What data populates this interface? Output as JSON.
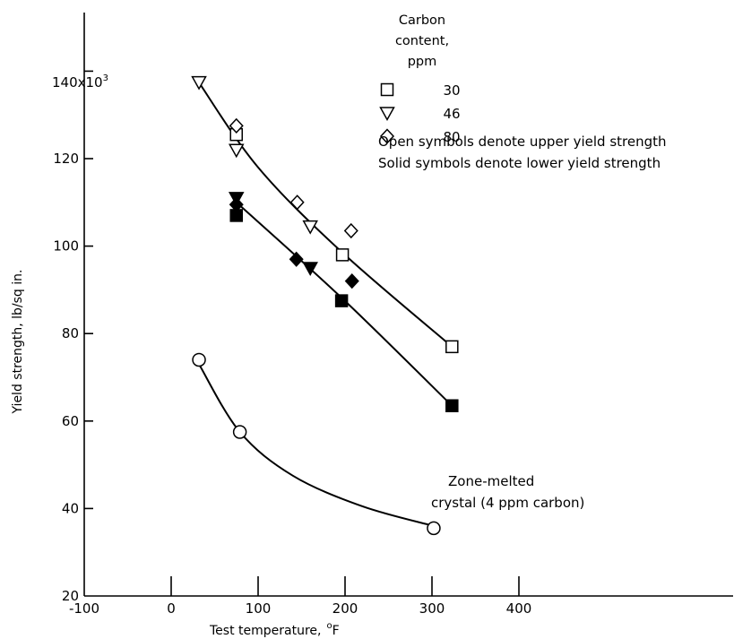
{
  "chart_data": {
    "type": "scatter",
    "title": "",
    "xlabel": "Test temperature,",
    "xlabel_unit": "F",
    "xlabel_unit_sup": "o",
    "ylabel": "Yield strength, lb/sq in.",
    "xlim": [
      -100,
      400
    ],
    "ylim": [
      20,
      140
    ],
    "x_ticks": [
      -100,
      0,
      100,
      200,
      300,
      400
    ],
    "y_ticks": [
      20,
      40,
      60,
      80,
      100,
      120
    ],
    "y_top_label": "140x10",
    "y_top_label_sup": "3",
    "y_top_value": 140,
    "legend": {
      "title": [
        "Carbon",
        "content,",
        "ppm"
      ],
      "entries": [
        {
          "symbol": "square",
          "label": "30"
        },
        {
          "symbol": "triangle",
          "label": "46"
        },
        {
          "symbol": "diamond",
          "label": "80"
        }
      ],
      "placement": "top-right",
      "notes": [
        "Open symbols denote upper yield strength",
        "Solid symbols denote lower yield strength"
      ]
    },
    "series": [
      {
        "symbol": "square",
        "fill": "open",
        "points": [
          {
            "x": 75,
            "y": 125.5
          },
          {
            "x": 197,
            "y": 98
          },
          {
            "x": 323,
            "y": 77
          }
        ]
      },
      {
        "symbol": "triangle",
        "fill": "open",
        "points": [
          {
            "x": 32,
            "y": 137.5
          },
          {
            "x": 75,
            "y": 122
          },
          {
            "x": 160,
            "y": 104.5
          }
        ]
      },
      {
        "symbol": "diamond",
        "fill": "open",
        "points": [
          {
            "x": 75,
            "y": 127.5
          },
          {
            "x": 145,
            "y": 110
          },
          {
            "x": 207,
            "y": 103.5
          }
        ]
      },
      {
        "symbol": "square",
        "fill": "solid",
        "points": [
          {
            "x": 75,
            "y": 107
          },
          {
            "x": 196,
            "y": 87.5
          },
          {
            "x": 323,
            "y": 63.5
          }
        ]
      },
      {
        "symbol": "triangle",
        "fill": "solid",
        "points": [
          {
            "x": 75,
            "y": 111
          },
          {
            "x": 160,
            "y": 95
          }
        ]
      },
      {
        "symbol": "diamond",
        "fill": "solid",
        "points": [
          {
            "x": 75,
            "y": 109.5
          },
          {
            "x": 144,
            "y": 97
          },
          {
            "x": 208,
            "y": 92
          }
        ]
      },
      {
        "symbol": "circle",
        "fill": "open",
        "points": [
          {
            "x": 32,
            "y": 74
          },
          {
            "x": 79,
            "y": 57.5
          },
          {
            "x": 302,
            "y": 35.5
          }
        ]
      }
    ],
    "curves": [
      {
        "points": [
          {
            "x": 30,
            "y": 138
          },
          {
            "x": 100,
            "y": 118
          },
          {
            "x": 197,
            "y": 98.5
          },
          {
            "x": 323,
            "y": 77
          }
        ]
      },
      {
        "points": [
          {
            "x": 75,
            "y": 110
          },
          {
            "x": 197,
            "y": 88
          },
          {
            "x": 323,
            "y": 63.5
          }
        ]
      },
      {
        "points": [
          {
            "x": 32,
            "y": 73
          },
          {
            "x": 79,
            "y": 57.5
          },
          {
            "x": 140,
            "y": 47.5
          },
          {
            "x": 220,
            "y": 40.5
          },
          {
            "x": 302,
            "y": 36
          }
        ]
      }
    ],
    "annotation": [
      "Zone-melted",
      "crystal (4 ppm carbon)"
    ]
  }
}
